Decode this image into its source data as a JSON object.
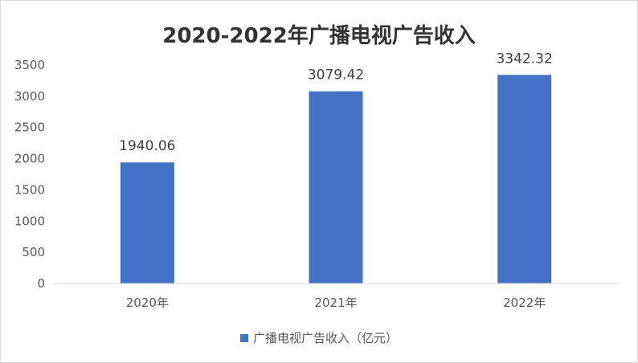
{
  "chart_data": {
    "type": "bar",
    "title": "2020-2022年广播电视广告收入",
    "categories": [
      "2020年",
      "2021年",
      "2022年"
    ],
    "series": [
      {
        "name": "广播电视广告收入（亿元）",
        "values": [
          1940.06,
          3079.42,
          3342.32
        ],
        "color": "#4472c4"
      }
    ],
    "data_labels": [
      "1940.06",
      "3079.42",
      "3342.32"
    ],
    "ylim": [
      0,
      3500
    ],
    "yticks": [
      0,
      500,
      1000,
      1500,
      2000,
      2500,
      3000,
      3500
    ],
    "grid": false,
    "legend_position": "bottom"
  }
}
